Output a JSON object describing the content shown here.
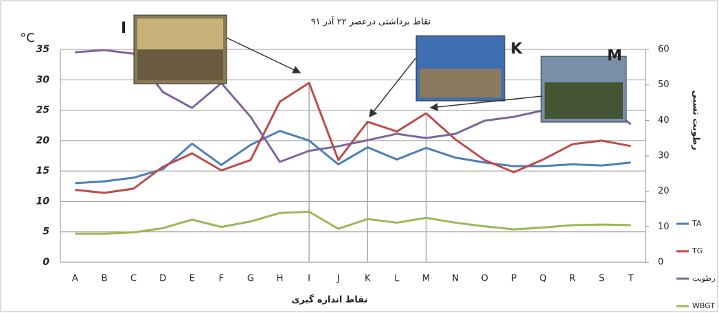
{
  "chart_data": {
    "type": "line",
    "title": "نقاط برداشتی درعصر ۲۲ آذر ۹۱",
    "y_label": "°C",
    "y2_label": "رطوبت نسبی",
    "x_label": "نقاط اندازه گیری",
    "categories": [
      "A",
      "B",
      "C",
      "D",
      "E",
      "F",
      "G",
      "H",
      "I",
      "J",
      "K",
      "L",
      "M",
      "N",
      "O",
      "P",
      "Q",
      "R",
      "S",
      "T"
    ],
    "series": [
      {
        "name": "TA",
        "color": "#4a7ebb",
        "values": [
          13.0,
          13.3,
          13.9,
          15.3,
          19.5,
          16.0,
          19.3,
          21.6,
          20.0,
          16.1,
          18.9,
          16.9,
          18.8,
          17.2,
          16.4,
          15.8,
          15.8,
          16.1,
          15.9,
          16.4
        ]
      },
      {
        "name": "TG",
        "color": "#be4b48",
        "values": [
          11.9,
          11.4,
          12.1,
          15.7,
          17.9,
          15.1,
          16.8,
          26.4,
          29.5,
          16.8,
          23.1,
          21.5,
          24.5,
          20.2,
          16.8,
          14.8,
          16.9,
          19.4,
          20.0,
          19.1
        ]
      },
      {
        "name": "رطوبت",
        "color": "#7e649e",
        "axis": "y2",
        "values": [
          59.2,
          59.8,
          58.8,
          48.0,
          43.5,
          50.5,
          41.0,
          28.3,
          31.4,
          32.7,
          34.4,
          36.2,
          35.0,
          36.2,
          39.9,
          41.0,
          42.8,
          44.5,
          45.0,
          38.9
        ]
      },
      {
        "name": "WBGT",
        "color": "#98b954",
        "values": [
          4.7,
          4.7,
          4.9,
          5.6,
          7.0,
          5.8,
          6.7,
          8.1,
          8.3,
          5.5,
          7.1,
          6.5,
          7.3,
          6.5,
          5.9,
          5.4,
          5.7,
          6.1,
          6.2,
          6.1
        ]
      }
    ],
    "ylim": [
      0,
      35
    ],
    "yticks": [
      0,
      5,
      10,
      15,
      20,
      25,
      30,
      35
    ],
    "y2lim": [
      0,
      60
    ],
    "y2ticks": [
      0,
      10,
      20,
      30,
      40,
      50,
      60
    ],
    "grid": true,
    "legend": "right",
    "annotations": [
      "I",
      "K",
      "M"
    ]
  }
}
